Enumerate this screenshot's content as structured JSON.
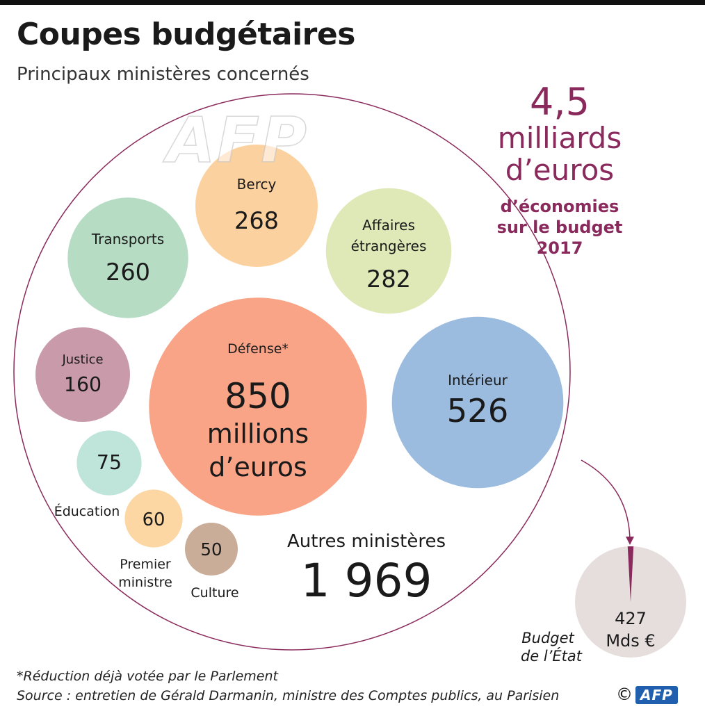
{
  "header": {
    "title": "Coupes budgétaires",
    "subtitle": "Principaux ministères concernés"
  },
  "total": {
    "value": "4,5",
    "unit_line1": "milliards",
    "unit_line2": "d’euros",
    "desc_line1": "d’économies",
    "desc_line2": "sur le budget",
    "desc_line3": "2017"
  },
  "chart_data": {
    "type": "bubble",
    "units": "millions d’euros",
    "bubbles": [
      {
        "label": "Bercy",
        "value": 268,
        "display": "268",
        "color": "#fcd1a0"
      },
      {
        "label": "Transports",
        "value": 260,
        "display": "260",
        "color": "#b6dcc4"
      },
      {
        "label": "Affaires étrangères",
        "value": 282,
        "display": "282",
        "color": "#dfe9b8"
      },
      {
        "label": "Justice",
        "value": 160,
        "display": "160",
        "color": "#c99aaa"
      },
      {
        "label": "Défense*",
        "value": 850,
        "display": "850",
        "sublabel1": "millions",
        "sublabel2": "d’euros",
        "color": "#f9a486"
      },
      {
        "label": "Intérieur",
        "value": 526,
        "display": "526",
        "color": "#9bbcdf"
      },
      {
        "label": "Éducation",
        "value": 75,
        "display": "75",
        "color": "#bfe4da"
      },
      {
        "label": "Premier ministre",
        "value": 60,
        "display": "60",
        "color": "#fcd7a4"
      },
      {
        "label": "Culture",
        "value": 50,
        "display": "50",
        "color": "#c9ad98"
      },
      {
        "label": "Autres ministères",
        "value": 1969,
        "display": "1 969",
        "color": ""
      }
    ],
    "budget": {
      "label_line1": "Budget",
      "label_line2": "de l’État",
      "value_line1": "427",
      "value_line2": "Mds €",
      "value": 427,
      "color": "#e5dedc",
      "slice_color": "#8a2a5c"
    },
    "outline_color": "#8a2a5c"
  },
  "footer": {
    "note": "*Réduction déjà votée par le Parlement",
    "source": "Source : entretien de Gérald Darmanin, ministre des Comptes publics, au Parisien",
    "copyright": "©",
    "logo": "AFP"
  }
}
